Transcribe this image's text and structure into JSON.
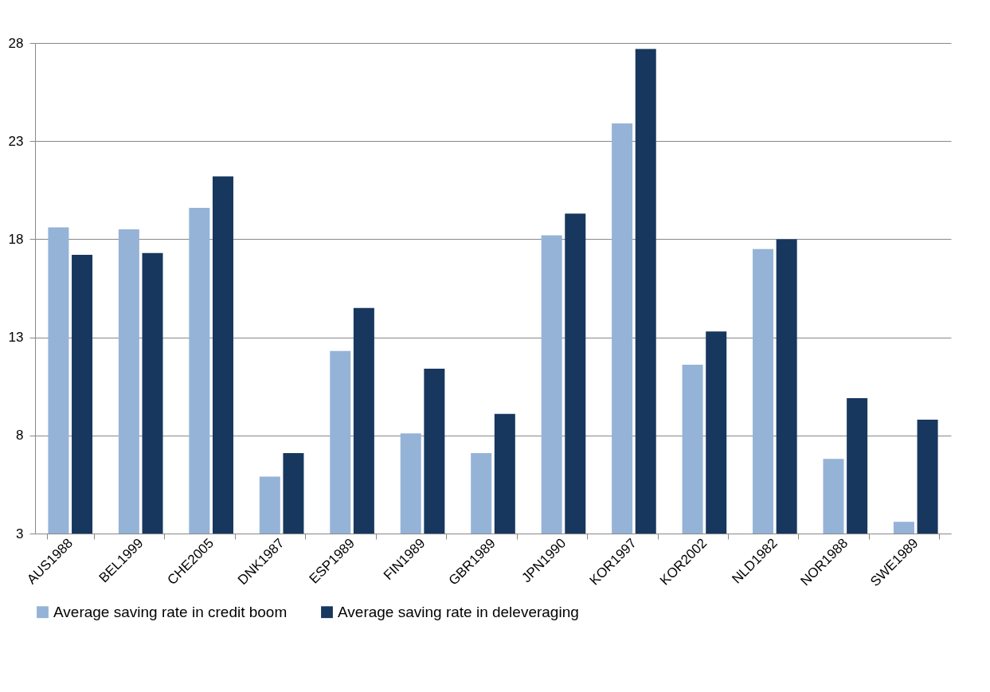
{
  "chart_data": {
    "type": "bar",
    "categories": [
      "AUS1988",
      "BEL1999",
      "CHE2005",
      "DNK1987",
      "ESP1989",
      "FIN1989",
      "GBR1989",
      "JPN1990",
      "KOR1997",
      "KOR2002",
      "NLD1982",
      "NOR1988",
      "SWE1989"
    ],
    "series": [
      {
        "name": "Average saving rate in credit boom",
        "color": "#95b3d7",
        "values": [
          18.6,
          18.5,
          19.6,
          5.9,
          12.3,
          8.1,
          7.1,
          18.2,
          23.9,
          11.6,
          17.5,
          6.8,
          3.6
        ]
      },
      {
        "name": "Average saving rate in deleveraging",
        "color": "#17375e",
        "values": [
          17.2,
          17.3,
          21.2,
          7.1,
          14.5,
          11.4,
          9.1,
          19.3,
          27.7,
          13.3,
          18.0,
          9.9,
          8.8
        ]
      }
    ],
    "ylim": [
      3,
      28
    ],
    "yticks": [
      3,
      8,
      13,
      18,
      23,
      28
    ],
    "grid": "y",
    "legend": "bottom"
  }
}
